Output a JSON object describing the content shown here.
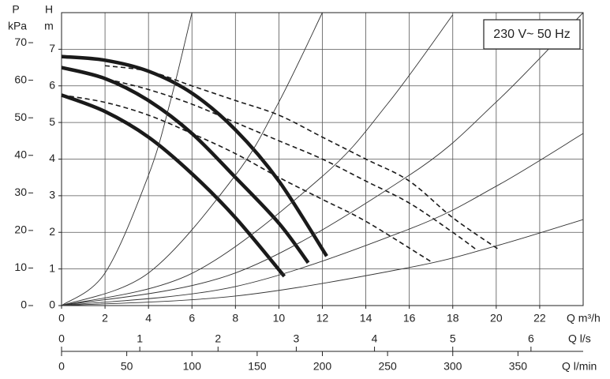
{
  "chart_data": {
    "type": "line",
    "legend_box": "230 V~ 50 Hz",
    "y_label": "H",
    "y_unit": "m",
    "y2_label": "P",
    "y2_unit": "kPa",
    "x_label": "Q m³/h",
    "x2_label": "Q l/s",
    "x3_label": "Q l/min",
    "xlim": [
      0,
      24
    ],
    "xticks": [
      0,
      2,
      4,
      6,
      8,
      10,
      12,
      14,
      16,
      18,
      20,
      22
    ],
    "x2lim": [
      0,
      6.667
    ],
    "x2ticks": [
      0,
      1,
      2,
      3,
      4,
      5,
      6
    ],
    "x3lim": [
      0,
      400
    ],
    "x3ticks": [
      0,
      50,
      100,
      150,
      200,
      250,
      300,
      350
    ],
    "ylim": [
      0,
      8
    ],
    "yticks": [
      0,
      1,
      2,
      3,
      4,
      5,
      6,
      7
    ],
    "y2lim": [
      0,
      78
    ],
    "y2ticks": [
      0,
      10,
      20,
      30,
      40,
      50,
      60,
      70
    ],
    "grid": true,
    "series": [
      {
        "style": "thick",
        "color": "#1a1a1a",
        "x": [
          0,
          2,
          4,
          6,
          8,
          10,
          12.2
        ],
        "values": [
          6.8,
          6.7,
          6.4,
          5.8,
          4.8,
          3.4,
          1.35
        ]
      },
      {
        "style": "thick",
        "color": "#1a1a1a",
        "x": [
          0,
          2,
          4,
          6,
          8,
          10,
          11.35
        ],
        "values": [
          6.5,
          6.2,
          5.6,
          4.7,
          3.5,
          2.25,
          1.17
        ]
      },
      {
        "style": "thick",
        "color": "#1a1a1a",
        "x": [
          0,
          2,
          4,
          6,
          8,
          10.25
        ],
        "values": [
          5.75,
          5.3,
          4.6,
          3.6,
          2.4,
          0.8
        ]
      },
      {
        "style": "dashed",
        "color": "#1a1a1a",
        "x": [
          2,
          4,
          6,
          8,
          10,
          12,
          14,
          16,
          18,
          20.07
        ],
        "values": [
          6.55,
          6.4,
          6.0,
          5.6,
          5.2,
          4.6,
          4.0,
          3.4,
          2.4,
          1.55
        ]
      },
      {
        "style": "dashed",
        "color": "#1a1a1a",
        "x": [
          0,
          2,
          4,
          6,
          8,
          10,
          12,
          14,
          16,
          18,
          19.15
        ],
        "values": [
          6.5,
          6.2,
          5.9,
          5.5,
          5.0,
          4.5,
          4.0,
          3.4,
          2.8,
          2.0,
          1.5
        ]
      },
      {
        "style": "dashed",
        "color": "#1a1a1a",
        "x": [
          0,
          2,
          4,
          6,
          8,
          10,
          12,
          14,
          17
        ],
        "values": [
          5.75,
          5.55,
          5.2,
          4.7,
          4.15,
          3.5,
          2.9,
          2.3,
          1.2
        ]
      },
      {
        "style": "thin",
        "color": "#333333",
        "x": [
          0,
          2,
          4,
          5,
          6
        ],
        "values": [
          0,
          0.89,
          3.56,
          5.56,
          8
        ]
      },
      {
        "style": "thin",
        "color": "#333333",
        "x": [
          0,
          4,
          8,
          10,
          12
        ],
        "values": [
          0,
          0.89,
          3.56,
          5.56,
          8
        ]
      },
      {
        "style": "thin",
        "color": "#333333",
        "x": [
          0,
          6,
          12,
          15,
          18
        ],
        "values": [
          0,
          0.88,
          3.53,
          5.51,
          7.94
        ]
      },
      {
        "style": "thin",
        "color": "#333333",
        "x": [
          0,
          8,
          16,
          20,
          24
        ],
        "values": [
          0,
          0.89,
          3.56,
          5.56,
          8
        ]
      },
      {
        "style": "thin",
        "color": "#333333",
        "x": [
          0,
          8,
          16,
          20,
          24
        ],
        "values": [
          0,
          0.52,
          2.09,
          3.26,
          4.7
        ]
      },
      {
        "style": "thin",
        "color": "#333333",
        "x": [
          0,
          8,
          16,
          20,
          24
        ],
        "values": [
          0,
          0.26,
          1.04,
          1.63,
          2.35
        ]
      }
    ]
  }
}
